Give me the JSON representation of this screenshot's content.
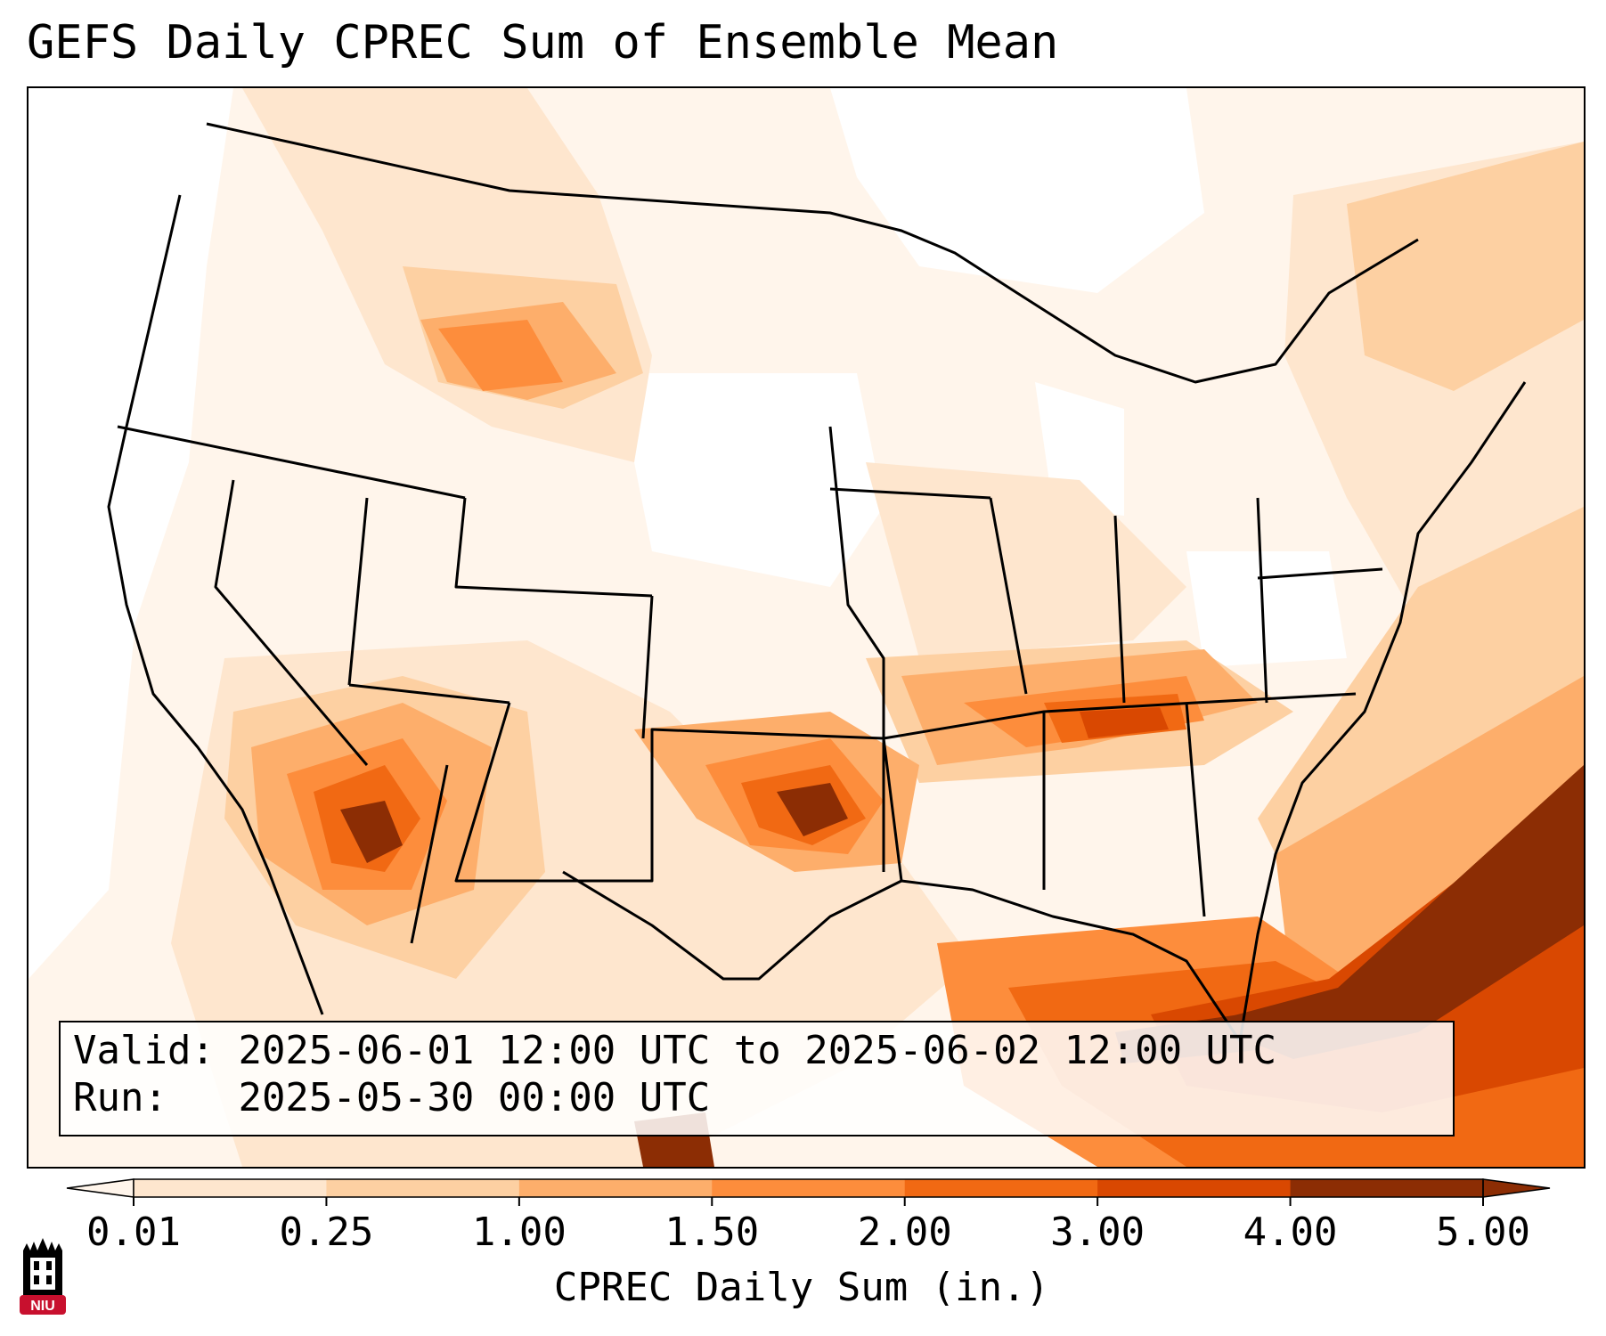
{
  "title": "GEFS Daily CPREC Sum of Ensemble Mean",
  "info": {
    "valid_label": "Valid:",
    "valid_value": "2025-06-01 12:00 UTC to 2025-06-02 12:00 UTC",
    "run_label": "Run:",
    "run_value": "2025-05-30 00:00 UTC"
  },
  "colorbar": {
    "label": "CPREC Daily Sum (in.)",
    "ticks": [
      "0.01",
      "0.25",
      "1.00",
      "1.50",
      "2.00",
      "3.00",
      "4.00",
      "5.00"
    ],
    "colors": [
      "#fff5eb",
      "#fee6ce",
      "#fdd0a2",
      "#fdae6b",
      "#fd8d3c",
      "#f16913",
      "#d94801",
      "#8c2d04"
    ],
    "extend": "both"
  },
  "logo": {
    "text": "NIU",
    "color": "#c8102e"
  },
  "map": {
    "colors": {
      "border": "#000000",
      "level_1": "#fff5eb",
      "level_2": "#fee6ce",
      "level_3": "#fdd0a2",
      "level_4": "#fdae6b",
      "level_5": "#fd8d3c",
      "level_6": "#f16913",
      "level_7": "#d94801",
      "level_8": "#8c2d04"
    }
  }
}
